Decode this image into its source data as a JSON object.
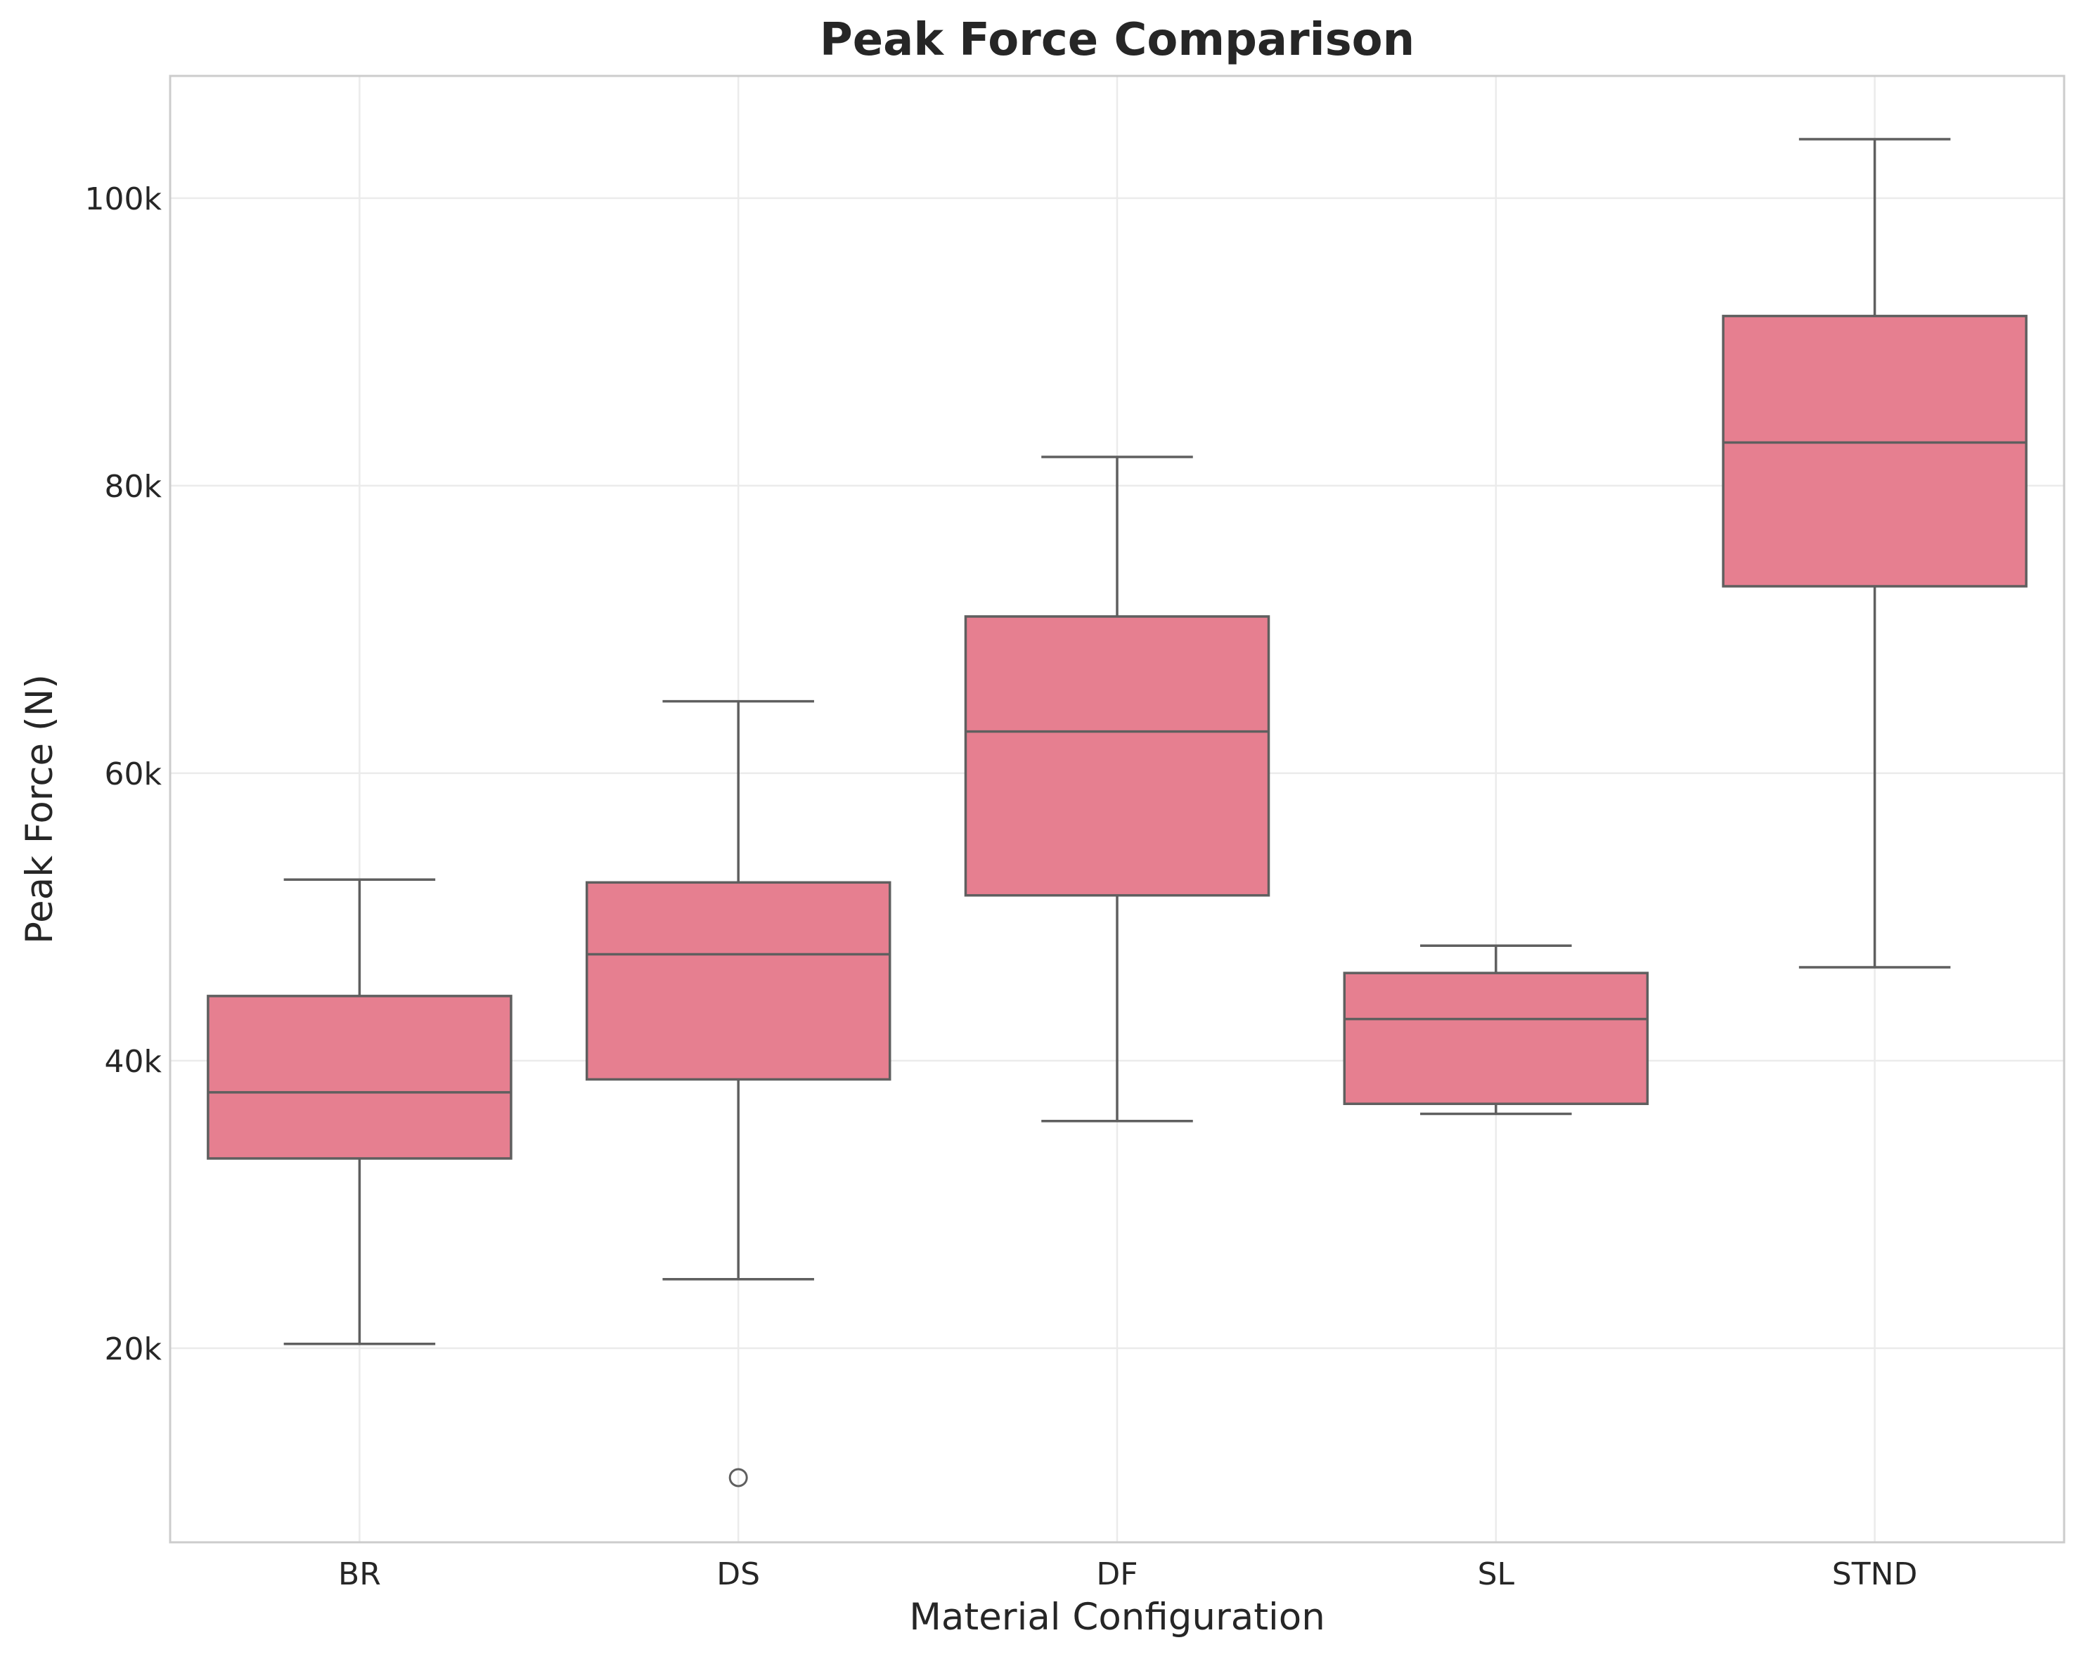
{
  "chart_data": {
    "type": "box",
    "title": "Peak Force Comparison",
    "xlabel": "Material Configuration",
    "ylabel": "Peak Force (N)",
    "categories": [
      "BR",
      "DS",
      "DF",
      "SL",
      "STND"
    ],
    "ylim": [
      6500,
      108500
    ],
    "yticks": [
      20000,
      40000,
      60000,
      80000,
      100000
    ],
    "ytick_labels": [
      "20k",
      "40k",
      "60k",
      "80k",
      "100k"
    ],
    "grid": true,
    "box_color": "#e67f90",
    "line_color": "#5f5f5f",
    "boxes": [
      {
        "category": "BR",
        "whisker_low": 20300,
        "q1": 33200,
        "median": 37800,
        "q3": 44500,
        "whisker_high": 52600,
        "outliers": []
      },
      {
        "category": "DS",
        "whisker_low": 24800,
        "q1": 38700,
        "median": 47400,
        "q3": 52400,
        "whisker_high": 65000,
        "outliers": [
          11000
        ]
      },
      {
        "category": "DF",
        "whisker_low": 35800,
        "q1": 51500,
        "median": 62900,
        "q3": 70900,
        "whisker_high": 82000,
        "outliers": []
      },
      {
        "category": "SL",
        "whisker_low": 36300,
        "q1": 37000,
        "median": 42900,
        "q3": 46100,
        "whisker_high": 48000,
        "outliers": []
      },
      {
        "category": "STND",
        "whisker_low": 46500,
        "q1": 73000,
        "median": 83000,
        "q3": 91800,
        "whisker_high": 104100,
        "outliers": []
      }
    ]
  }
}
